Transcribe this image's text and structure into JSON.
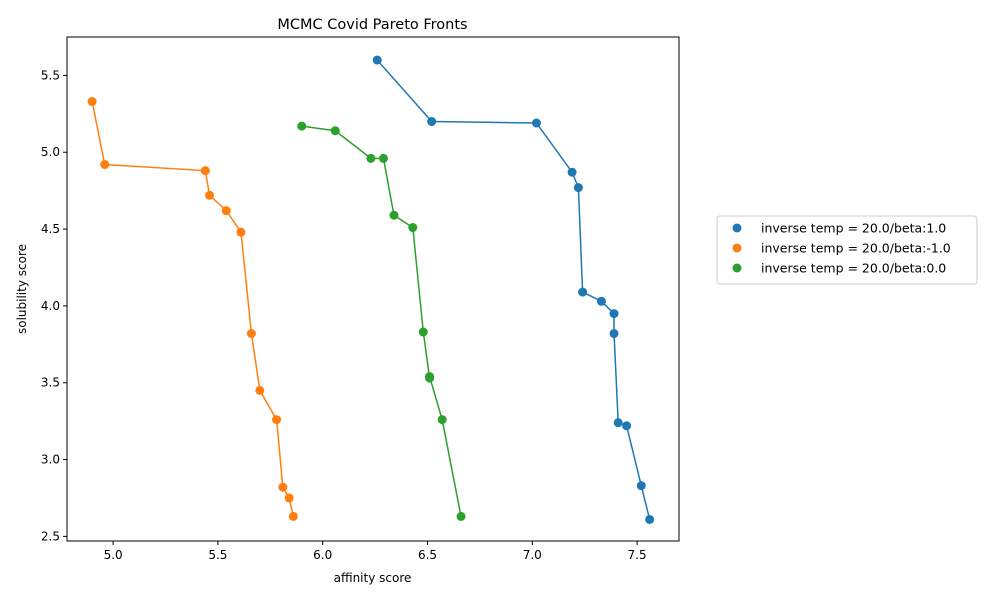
{
  "chart_data": {
    "type": "scatter",
    "title": "MCMC Covid Pareto Fronts",
    "xlabel": "affinity score",
    "ylabel": "solubility score",
    "xlim": [
      4.78,
      7.7
    ],
    "ylim": [
      2.47,
      5.75
    ],
    "xticks": [
      5.0,
      5.5,
      6.0,
      6.5,
      7.0,
      7.5
    ],
    "xtick_labels": [
      "5.0",
      "5.5",
      "6.0",
      "6.5",
      "7.0",
      "7.5"
    ],
    "yticks": [
      2.5,
      3.0,
      3.5,
      4.0,
      4.5,
      5.0,
      5.5
    ],
    "ytick_labels": [
      "2.5",
      "3.0",
      "3.5",
      "4.0",
      "4.5",
      "5.0",
      "5.5"
    ],
    "grid": false,
    "legend_position": "outside-right",
    "series": [
      {
        "name": "inverse temp = 20.0/beta:1.0",
        "color": "#1f77b4",
        "x": [
          6.26,
          6.52,
          7.02,
          7.19,
          7.22,
          7.24,
          7.33,
          7.39,
          7.39,
          7.41,
          7.45,
          7.52,
          7.56
        ],
        "y": [
          5.6,
          5.2,
          5.19,
          4.87,
          4.77,
          4.09,
          4.03,
          3.95,
          3.82,
          3.24,
          3.22,
          2.83,
          2.61
        ]
      },
      {
        "name": "inverse temp = 20.0/beta:-1.0",
        "color": "#ff7f0e",
        "x": [
          4.9,
          4.96,
          5.44,
          5.46,
          5.54,
          5.61,
          5.66,
          5.7,
          5.78,
          5.81,
          5.84,
          5.86
        ],
        "y": [
          5.33,
          4.92,
          4.88,
          4.72,
          4.62,
          4.48,
          3.82,
          3.45,
          3.26,
          2.82,
          2.75,
          2.63
        ]
      },
      {
        "name": "inverse temp = 20.0/beta:0.0",
        "color": "#2ca02c",
        "x": [
          5.9,
          6.06,
          6.23,
          6.29,
          6.34,
          6.43,
          6.48,
          6.51,
          6.51,
          6.57,
          6.66
        ],
        "y": [
          5.17,
          5.14,
          4.96,
          4.96,
          4.59,
          4.51,
          3.83,
          3.53,
          3.54,
          3.26,
          2.63
        ]
      }
    ]
  }
}
